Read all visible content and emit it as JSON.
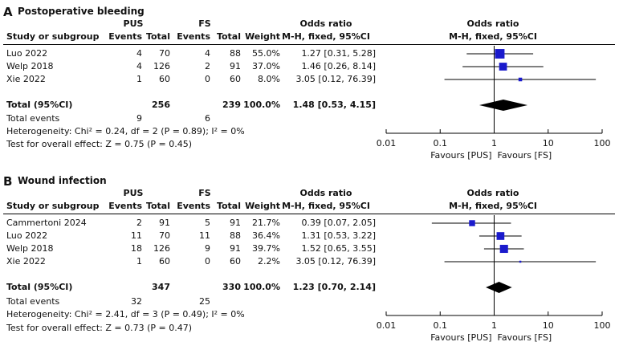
{
  "chart_data": [
    {
      "type": "forest",
      "panel_label": "A",
      "title": "Postoperative bleeding",
      "group_names": [
        "PUS",
        "FS"
      ],
      "columns": {
        "study": "Study or subgroup",
        "events": "Events",
        "total": "Total",
        "weight": "Weight",
        "ratio_group": "Odds ratio",
        "ratio_method": "M-H, fixed, 95%CI"
      },
      "studies": [
        {
          "name": "Luo 2022",
          "e1": "4",
          "n1": "70",
          "e2": "4",
          "n2": "88",
          "weight": "55.0%",
          "ci_text": "1.27 [0.31, 5.28]",
          "or": 1.27,
          "lo": 0.31,
          "hi": 5.28,
          "w": 55.0
        },
        {
          "name": "Welp 2018",
          "e1": "4",
          "n1": "126",
          "e2": "2",
          "n2": "91",
          "weight": "37.0%",
          "ci_text": "1.46 [0.26, 8.14]",
          "or": 1.46,
          "lo": 0.26,
          "hi": 8.14,
          "w": 37.0
        },
        {
          "name": "Xie 2022",
          "e1": "1",
          "n1": "60",
          "e2": "0",
          "n2": "60",
          "weight": "8.0%",
          "ci_text": "3.05 [0.12, 76.39]",
          "or": 3.05,
          "lo": 0.12,
          "hi": 76.39,
          "w": 8.0
        }
      ],
      "total": {
        "label": "Total (95%CI)",
        "n1": "256",
        "n2": "239",
        "weight": "100.0%",
        "ci_text": "1.48 [0.53, 4.15]",
        "or": 1.48,
        "lo": 0.53,
        "hi": 4.15
      },
      "total_events": {
        "label": "Total events",
        "e1": "9",
        "e2": "6"
      },
      "heterogeneity": "Heterogeneity: Chi² = 0.24, df = 2 (P = 0.89); I² = 0%",
      "overall_effect": "Test for overall effect: Z = 0.75 (P = 0.45)",
      "x_axis": {
        "scale": "log",
        "range": [
          0.01,
          100
        ],
        "ticks": [
          0.01,
          0.1,
          1,
          10,
          100
        ],
        "tick_labels": [
          "0.01",
          "0.1",
          "1",
          "10",
          "100"
        ]
      },
      "favours": [
        "Favours [PUS]",
        "Favours [FS]"
      ],
      "marker_color": "#1a1acc"
    },
    {
      "type": "forest",
      "panel_label": "B",
      "title": "Wound infection",
      "group_names": [
        "PUS",
        "FS"
      ],
      "columns": {
        "study": "Study or subgroup",
        "events": "Events",
        "total": "Total",
        "weight": "Weight",
        "ratio_group": "Odds ratio",
        "ratio_method": "M-H, fixed, 95%CI"
      },
      "studies": [
        {
          "name": "Cammertoni 2024",
          "e1": "2",
          "n1": "91",
          "e2": "5",
          "n2": "91",
          "weight": "21.7%",
          "ci_text": "0.39 [0.07, 2.05]",
          "or": 0.39,
          "lo": 0.07,
          "hi": 2.05,
          "w": 21.7
        },
        {
          "name": "Luo 2022",
          "e1": "11",
          "n1": "70",
          "e2": "11",
          "n2": "88",
          "weight": "36.4%",
          "ci_text": "1.31 [0.53, 3.22]",
          "or": 1.31,
          "lo": 0.53,
          "hi": 3.22,
          "w": 36.4
        },
        {
          "name": "Welp 2018",
          "e1": "18",
          "n1": "126",
          "e2": "9",
          "n2": "91",
          "weight": "39.7%",
          "ci_text": "1.52 [0.65, 3.55]",
          "or": 1.52,
          "lo": 0.65,
          "hi": 3.55,
          "w": 39.7
        },
        {
          "name": "Xie 2022",
          "e1": "1",
          "n1": "60",
          "e2": "0",
          "n2": "60",
          "weight": "2.2%",
          "ci_text": "3.05 [0.12, 76.39]",
          "or": 3.05,
          "lo": 0.12,
          "hi": 76.39,
          "w": 2.2
        }
      ],
      "total": {
        "label": "Total (95%CI)",
        "n1": "347",
        "n2": "330",
        "weight": "100.0%",
        "ci_text": "1.23 [0.70, 2.14]",
        "or": 1.23,
        "lo": 0.7,
        "hi": 2.14
      },
      "total_events": {
        "label": "Total events",
        "e1": "32",
        "e2": "25"
      },
      "heterogeneity": "Heterogeneity: Chi² = 2.41, df = 3 (P = 0.49); I² = 0%",
      "overall_effect": "Test for overall effect: Z = 0.73 (P = 0.47)",
      "x_axis": {
        "scale": "log",
        "range": [
          0.01,
          100
        ],
        "ticks": [
          0.01,
          0.1,
          1,
          10,
          100
        ],
        "tick_labels": [
          "0.01",
          "0.1",
          "1",
          "10",
          "100"
        ]
      },
      "favours": [
        "Favours [PUS]",
        "Favours [FS]"
      ],
      "marker_color": "#1a1acc"
    }
  ]
}
